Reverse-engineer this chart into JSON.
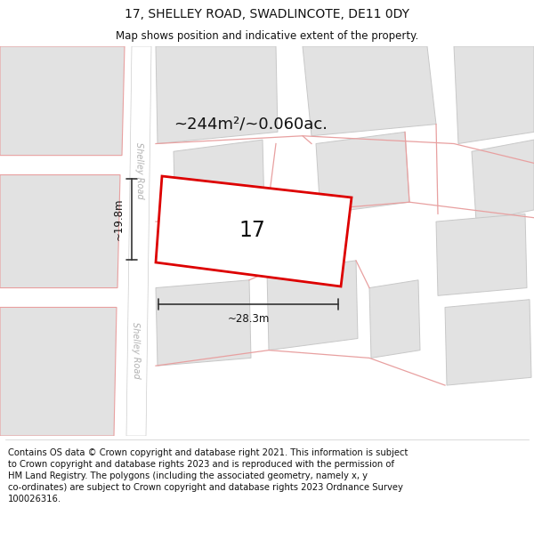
{
  "title": "17, SHELLEY ROAD, SWADLINCOTE, DE11 0DY",
  "subtitle": "Map shows position and indicative extent of the property.",
  "footer": "Contains OS data © Crown copyright and database right 2021. This information is subject\nto Crown copyright and database rights 2023 and is reproduced with the permission of\nHM Land Registry. The polygons (including the associated geometry, namely x, y\nco-ordinates) are subject to Crown copyright and database rights 2023 Ordnance Survey\n100026316.",
  "area_label": "~244m²/~0.060ac.",
  "plot_number": "17",
  "dim_width": "~28.3m",
  "dim_height": "~19.8m",
  "plot_outline_color": "#dd0000",
  "road_fill": "#ffffff",
  "road_label_color": "#b0b0b0",
  "building_fill": "#e2e2e2",
  "building_edge": "#c8c8c8",
  "pink_line_color": "#e8a0a0",
  "map_bg": "#eeeeee",
  "title_fontsize": 10,
  "subtitle_fontsize": 8.5,
  "area_fontsize": 13,
  "plot_num_fontsize": 17,
  "dim_fontsize": 8.5,
  "road_label_fontsize": 7,
  "footer_fontsize": 7.2
}
